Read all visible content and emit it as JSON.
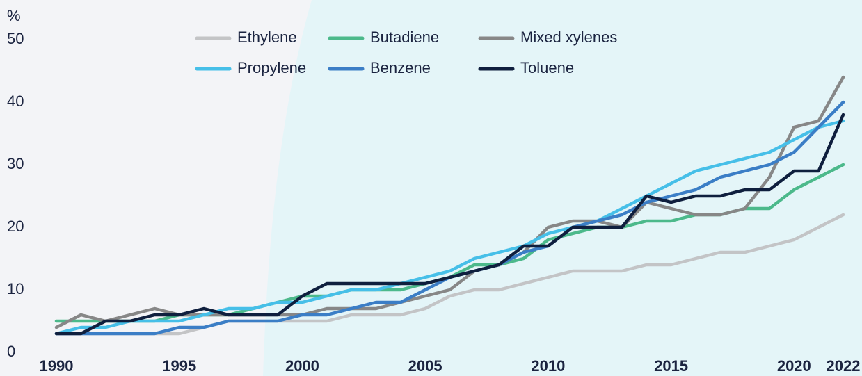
{
  "chart_data": {
    "type": "line",
    "y_axis_label": "%",
    "x": [
      1990,
      1991,
      1992,
      1993,
      1994,
      1995,
      1996,
      1997,
      1998,
      1999,
      2000,
      2001,
      2002,
      2003,
      2004,
      2005,
      2006,
      2007,
      2008,
      2009,
      2010,
      2011,
      2012,
      2013,
      2014,
      2015,
      2016,
      2017,
      2018,
      2019,
      2020,
      2021,
      2022
    ],
    "xlim": [
      1990,
      2022
    ],
    "xticks": [
      1990,
      1995,
      2000,
      2005,
      2010,
      2015,
      2020,
      2022
    ],
    "ylim": [
      0,
      50
    ],
    "yticks": [
      0,
      10,
      20,
      30,
      40,
      50
    ],
    "grid": false,
    "series": [
      {
        "name": "Ethylene",
        "color": "#c3c4c6",
        "values": [
          3,
          3,
          3,
          3,
          3,
          3,
          4,
          5,
          5,
          5,
          5,
          5,
          6,
          6,
          6,
          7,
          9,
          10,
          10,
          11,
          12,
          13,
          13,
          13,
          14,
          14,
          15,
          16,
          16,
          17,
          18,
          20,
          22
        ]
      },
      {
        "name": "Butadiene",
        "color": "#4cb98b",
        "values": [
          5,
          5,
          5,
          5,
          5,
          6,
          6,
          6,
          7,
          8,
          9,
          9,
          10,
          10,
          10,
          11,
          12,
          14,
          14,
          15,
          18,
          19,
          20,
          20,
          21,
          21,
          22,
          22,
          23,
          23,
          26,
          28,
          30
        ]
      },
      {
        "name": "Mixed xylenes",
        "color": "#878787",
        "values": [
          4,
          6,
          5,
          6,
          7,
          6,
          6,
          6,
          6,
          6,
          6,
          7,
          7,
          7,
          8,
          9,
          10,
          13,
          14,
          16,
          20,
          21,
          21,
          20,
          24,
          23,
          22,
          22,
          23,
          28,
          36,
          37,
          44
        ]
      },
      {
        "name": "Propylene",
        "color": "#46bfe8",
        "values": [
          3,
          4,
          4,
          5,
          5,
          5,
          6,
          7,
          7,
          8,
          8,
          9,
          10,
          10,
          11,
          12,
          13,
          15,
          16,
          17,
          19,
          20,
          21,
          23,
          25,
          27,
          29,
          30,
          31,
          32,
          34,
          36,
          37
        ]
      },
      {
        "name": "Benzene",
        "color": "#3b7ec6",
        "values": [
          3,
          3,
          3,
          3,
          3,
          4,
          4,
          5,
          5,
          5,
          6,
          6,
          7,
          8,
          8,
          10,
          12,
          13,
          14,
          16,
          17,
          20,
          21,
          22,
          24,
          25,
          26,
          28,
          29,
          30,
          32,
          36,
          40
        ]
      },
      {
        "name": "Toluene",
        "color": "#0f1f3e",
        "values": [
          3,
          3,
          5,
          5,
          6,
          6,
          7,
          6,
          6,
          6,
          9,
          11,
          11,
          11,
          11,
          11,
          12,
          13,
          14,
          17,
          17,
          20,
          20,
          20,
          25,
          24,
          25,
          25,
          26,
          26,
          29,
          29,
          38
        ]
      }
    ]
  }
}
